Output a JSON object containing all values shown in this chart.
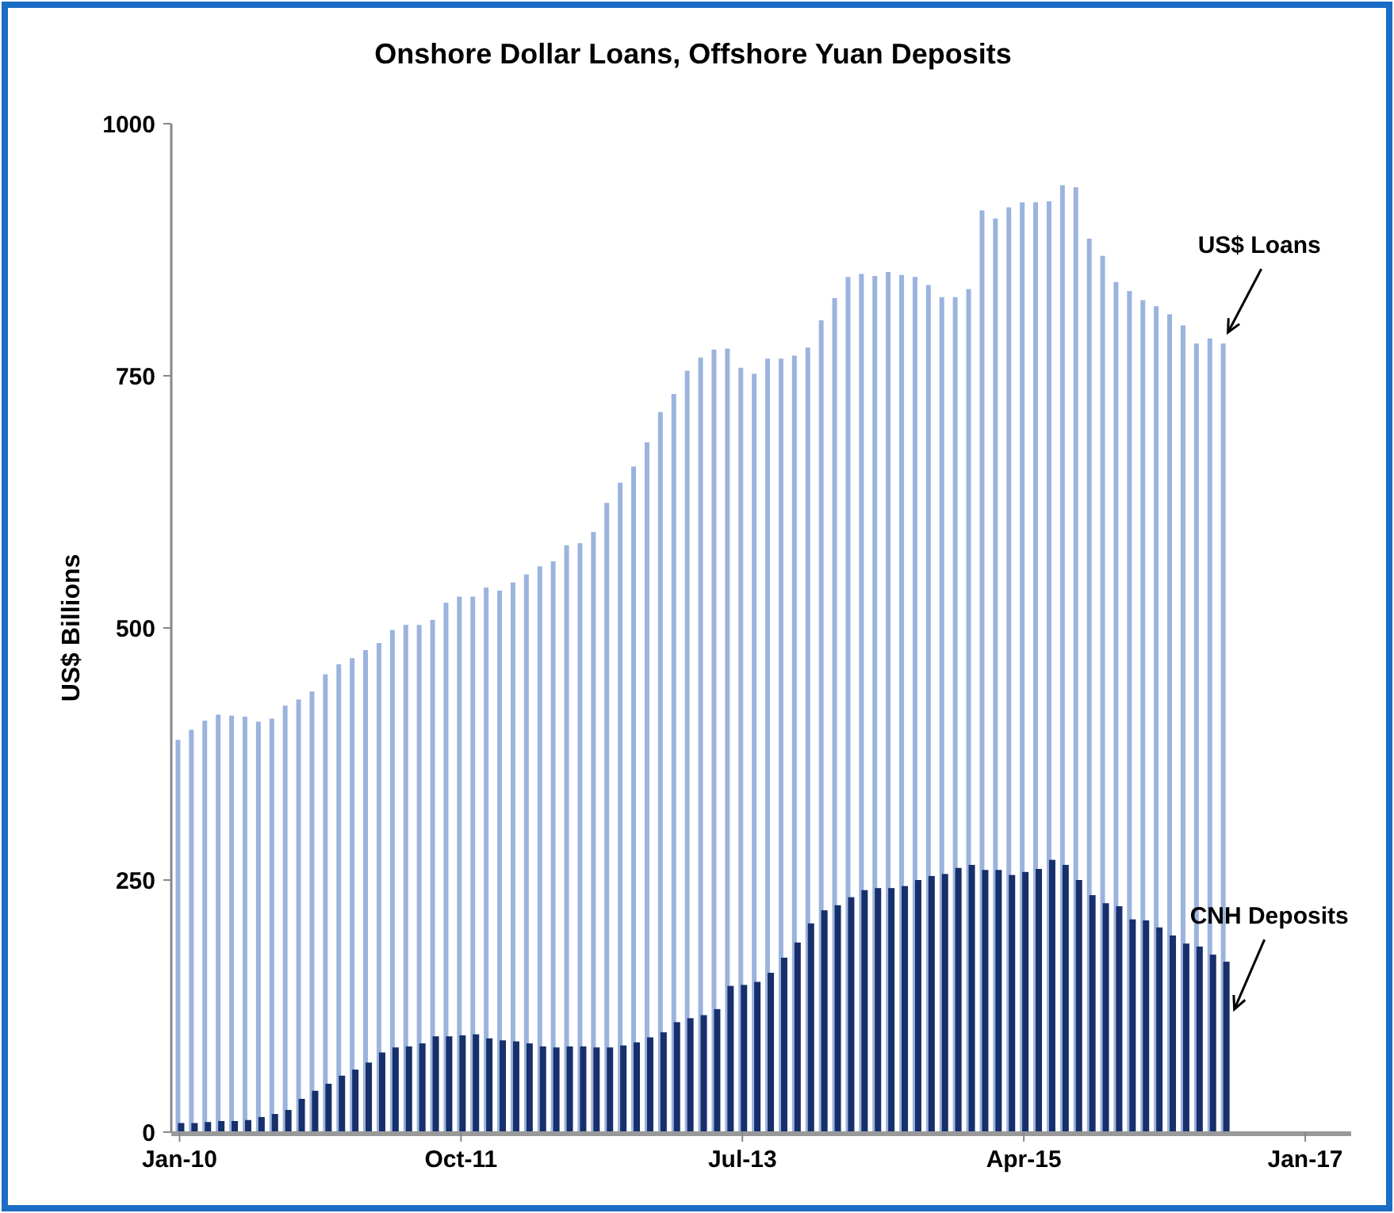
{
  "chart_data": {
    "type": "bar",
    "title": "Onshore Dollar Loans, Offshore Yuan Deposits",
    "ylabel": "US$ Billions",
    "categories": [
      "Jan-10",
      null,
      null,
      null,
      null,
      null,
      null,
      null,
      null,
      null,
      null,
      null,
      null,
      null,
      null,
      null,
      null,
      null,
      null,
      null,
      null,
      "Oct-11",
      null,
      null,
      null,
      null,
      null,
      null,
      null,
      null,
      null,
      null,
      null,
      null,
      null,
      null,
      null,
      null,
      null,
      null,
      null,
      null,
      "Jul-13",
      null,
      null,
      null,
      null,
      null,
      null,
      null,
      null,
      null,
      null,
      null,
      null,
      null,
      null,
      null,
      null,
      null,
      null,
      null,
      null,
      "Apr-15",
      null,
      null,
      null,
      null,
      null,
      null,
      null,
      null,
      null,
      null,
      null,
      null,
      null,
      null,
      null,
      null,
      null,
      null,
      null,
      null,
      "Jan-17"
    ],
    "series": [
      {
        "name": "US$ Loans",
        "color": "#9bb3de",
        "values": [
          389,
          399,
          408,
          414,
          413,
          412,
          407,
          410,
          423,
          429,
          437,
          454,
          464,
          470,
          478,
          485,
          498,
          503,
          503,
          508,
          525,
          531,
          531,
          540,
          537,
          545,
          553,
          561,
          566,
          582,
          584,
          595,
          624,
          644,
          660,
          684,
          714,
          732,
          755,
          768,
          776,
          777,
          758,
          752,
          767,
          767,
          770,
          778,
          805,
          827,
          848,
          851,
          849,
          853,
          850,
          848,
          840,
          828,
          828,
          836,
          914,
          906,
          917,
          922,
          922,
          923,
          939,
          937,
          886,
          869,
          843,
          834,
          825,
          819,
          811,
          800,
          782,
          787,
          782,
          null,
          null,
          null,
          null,
          null,
          null
        ]
      },
      {
        "name": "CNH Deposits",
        "color": "#172f6b",
        "values": [
          9,
          9,
          10,
          11,
          11,
          12,
          15,
          18,
          22,
          33,
          41,
          48,
          56,
          62,
          69,
          79,
          84,
          85,
          88,
          95,
          95,
          96,
          97,
          93,
          91,
          90,
          88,
          85,
          84,
          85,
          85,
          84,
          84,
          86,
          89,
          94,
          99,
          109,
          113,
          116,
          122,
          145,
          146,
          149,
          158,
          173,
          188,
          207,
          220,
          225,
          233,
          240,
          242,
          242,
          244,
          250,
          254,
          256,
          262,
          265,
          260,
          260,
          255,
          258,
          261,
          270,
          265,
          250,
          235,
          227,
          224,
          211,
          210,
          203,
          195,
          187,
          184,
          176,
          169,
          null,
          null,
          null,
          null,
          null,
          null
        ]
      }
    ],
    "ylim": [
      0,
      1000
    ],
    "yticks": [
      0,
      250,
      500,
      750,
      1000
    ],
    "grid": false,
    "legend": false
  }
}
